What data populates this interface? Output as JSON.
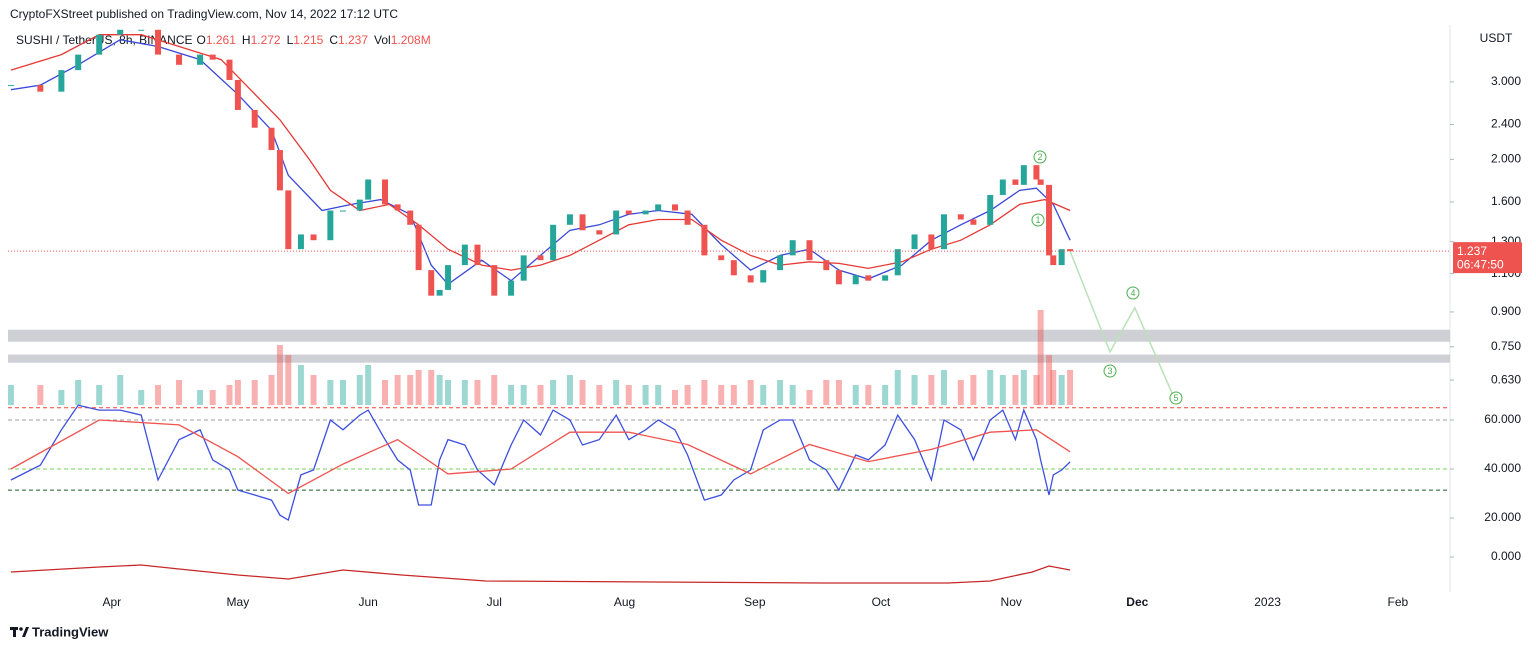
{
  "header": {
    "attribution": "CryptoFXStreet published on TradingView.com, Nov 14, 2022 17:12 UTC"
  },
  "footer": {
    "brand": "TradingView"
  },
  "chart_data": [
    {
      "type": "candlestick",
      "title": "SUSHI / TetherUS, 8h, BINANCE",
      "legend_values": [
        {
          "label": "O",
          "value": 1.261
        },
        {
          "label": "H",
          "value": 1.272
        },
        {
          "label": "L",
          "value": 1.215
        },
        {
          "label": "C",
          "value": 1.237
        },
        {
          "label": "Vol",
          "value": "1.208M"
        }
      ],
      "y_unit": "USDT",
      "countdown": "06:47:50",
      "log_scale": true,
      "up_color": "#26a69a",
      "down_color": "#ef5350",
      "xlim": [
        66.3,
        409.4
      ],
      "xticks": [
        {
          "value": 91,
          "label": "Apr"
        },
        {
          "value": 121,
          "label": "May"
        },
        {
          "value": 152,
          "label": "Jun"
        },
        {
          "value": 182,
          "label": "Jul"
        },
        {
          "value": 213,
          "label": "Aug"
        },
        {
          "value": 244,
          "label": "Sep"
        },
        {
          "value": 274,
          "label": "Oct"
        },
        {
          "value": 305,
          "label": "Nov"
        },
        {
          "value": 335,
          "label": "Dec"
        },
        {
          "value": 366,
          "label": "2023"
        },
        {
          "value": 397,
          "label": "Feb"
        }
      ],
      "ylim": [
        0.553,
        4.04
      ],
      "yticks": [
        {
          "value": 3,
          "label": "3.000"
        },
        {
          "value": 2.4,
          "label": "2.400"
        },
        {
          "value": 2,
          "label": "2.000"
        },
        {
          "value": 1.6,
          "label": "1.600"
        },
        {
          "value": 1.3,
          "label": "1.300"
        },
        {
          "value": 1.1,
          "label": "1.100"
        },
        {
          "value": 0.9,
          "label": "0.900"
        },
        {
          "value": 0.75,
          "label": "0.750"
        },
        {
          "value": 0.63,
          "label": "0.630"
        }
      ],
      "x": [
        67,
        74,
        79,
        83,
        88,
        93,
        98,
        102,
        107,
        112,
        115,
        119,
        121,
        125,
        129,
        131,
        133,
        136,
        139,
        143,
        146,
        150,
        152,
        156,
        159,
        162,
        164,
        167,
        169,
        171,
        175,
        178,
        182,
        186,
        189,
        193,
        196,
        200,
        203,
        207,
        211,
        214,
        218,
        221,
        225,
        228,
        232,
        236,
        239,
        243,
        246,
        250,
        253,
        257,
        261,
        264,
        268,
        271,
        275,
        278,
        282,
        286,
        289,
        293,
        296,
        300,
        303,
        306,
        308,
        311,
        312,
        314,
        315,
        317,
        319
      ],
      "close": [
        2.95,
        2.85,
        3.19,
        3.46,
        3.84,
        3.94,
        3.94,
        3.46,
        3.28,
        3.46,
        3.37,
        3.03,
        2.59,
        2.36,
        2.1,
        1.7,
        1.25,
        1.35,
        1.31,
        1.53,
        1.53,
        1.62,
        1.8,
        1.58,
        1.53,
        1.42,
        1.12,
        0.98,
        1.01,
        1.15,
        1.28,
        1.15,
        0.98,
        1.06,
        1.21,
        1.18,
        1.42,
        1.5,
        1.38,
        1.35,
        1.53,
        1.5,
        1.53,
        1.58,
        1.53,
        1.42,
        1.21,
        1.18,
        1.09,
        1.05,
        1.12,
        1.21,
        1.31,
        1.18,
        1.12,
        1.04,
        1.09,
        1.06,
        1.09,
        1.25,
        1.35,
        1.25,
        1.5,
        1.46,
        1.42,
        1.66,
        1.8,
        1.75,
        1.94,
        1.8,
        1.75,
        1.21,
        1.15,
        1.25,
        1.237
      ],
      "volume": [
        2,
        2,
        1.5,
        2.5,
        2,
        3,
        1.5,
        2,
        2.5,
        1.5,
        1.5,
        2,
        2.5,
        2.5,
        3,
        6,
        5,
        4,
        3,
        2.5,
        2.5,
        3,
        4,
        2.5,
        3,
        3,
        3.5,
        3.5,
        3,
        2.5,
        2.5,
        2.5,
        3,
        2,
        2,
        2,
        2.5,
        3,
        2.5,
        2,
        2.5,
        2,
        2,
        2,
        1.5,
        2,
        2.5,
        2,
        2,
        2.5,
        2,
        2.5,
        2,
        1.5,
        2.5,
        2.5,
        2,
        2,
        2,
        3.5,
        3,
        3,
        3.5,
        2.5,
        3,
        3.5,
        3,
        3,
        3.5,
        3,
        9.5,
        5,
        3.5,
        3,
        3.5
      ],
      "series": [
        {
          "color": "#3949d8",
          "x": [
            67,
            74,
            83,
            93,
            102,
            112,
            121,
            129,
            133,
            141,
            148,
            155,
            162,
            167,
            171,
            179,
            186,
            193,
            200,
            207,
            214,
            221,
            229,
            236,
            243,
            250,
            257,
            264,
            271,
            279,
            286,
            293,
            300,
            307,
            311,
            315,
            319
          ],
          "values": [
            2.88,
            2.95,
            3.28,
            3.74,
            3.61,
            3.37,
            2.81,
            2.33,
            1.84,
            1.53,
            1.58,
            1.62,
            1.5,
            1.15,
            1.04,
            1.18,
            1.06,
            1.21,
            1.38,
            1.42,
            1.5,
            1.53,
            1.5,
            1.28,
            1.12,
            1.21,
            1.25,
            1.12,
            1.07,
            1.15,
            1.31,
            1.42,
            1.53,
            1.7,
            1.72,
            1.58,
            1.31
          ]
        },
        {
          "color": "#e53935",
          "x": [
            67,
            79,
            88,
            98,
            107,
            117,
            124,
            131,
            138,
            143,
            150,
            157,
            164,
            171,
            179,
            186,
            193,
            200,
            207,
            214,
            221,
            229,
            236,
            243,
            250,
            257,
            264,
            271,
            279,
            286,
            293,
            300,
            307,
            313,
            319
          ],
          "values": [
            3.19,
            3.46,
            3.84,
            3.84,
            3.61,
            3.37,
            2.88,
            2.46,
            2.0,
            1.7,
            1.53,
            1.58,
            1.42,
            1.25,
            1.15,
            1.12,
            1.15,
            1.21,
            1.31,
            1.42,
            1.46,
            1.46,
            1.31,
            1.21,
            1.15,
            1.17,
            1.16,
            1.13,
            1.17,
            1.25,
            1.31,
            1.42,
            1.58,
            1.62,
            1.53
          ]
        }
      ],
      "projection": {
        "color": "#b9e2b9",
        "x": [
          319,
          328.5,
          334.4,
          343.9
        ],
        "values": [
          1.237,
          0.73,
          0.92,
          0.57
        ]
      },
      "waves": [
        "1",
        "2",
        "3",
        "4",
        "5"
      ],
      "zones": [
        [
          0.77,
          0.82
        ],
        [
          0.69,
          0.72
        ]
      ]
    },
    {
      "type": "line",
      "ylim": [
        9,
        66.1
      ],
      "yticks": [
        {
          "value": 60,
          "label": "60.000"
        },
        {
          "value": 40,
          "label": "40.000"
        },
        {
          "value": 20,
          "label": "20.000"
        }
      ],
      "levels": [
        {
          "value": 65,
          "color": "#f44336"
        },
        {
          "value": 60,
          "color": "#9e9e9e"
        },
        {
          "value": 40,
          "color": "#76d35a"
        },
        {
          "value": 31.4,
          "color": "#1b5e20"
        }
      ],
      "series": [
        {
          "color": "#3d4fe0",
          "x": [
            67,
            74,
            79,
            83,
            88,
            93,
            98,
            102,
            107,
            112,
            115,
            119,
            121,
            125,
            129,
            131,
            133,
            136,
            139,
            143,
            146,
            150,
            152,
            156,
            159,
            162,
            164,
            167,
            169,
            171,
            175,
            178,
            182,
            186,
            189,
            193,
            196,
            200,
            203,
            207,
            211,
            214,
            218,
            221,
            225,
            228,
            232,
            236,
            239,
            243,
            246,
            250,
            253,
            257,
            261,
            264,
            268,
            271,
            275,
            278,
            282,
            286,
            289,
            293,
            296,
            300,
            303,
            306,
            308,
            311,
            312,
            314,
            315,
            317,
            319
          ],
          "values": [
            35.5,
            41.6,
            56,
            66,
            64,
            64,
            62,
            35.5,
            52,
            56,
            43.7,
            39.6,
            31.4,
            29.4,
            27.3,
            21.2,
            19.2,
            37.6,
            39.6,
            60,
            56,
            62,
            64,
            52,
            43.7,
            39.6,
            25.3,
            25.3,
            43.7,
            52,
            49.8,
            39.6,
            33.5,
            49.8,
            60,
            53.9,
            64,
            60,
            49.8,
            52,
            62,
            52,
            56,
            60,
            56,
            45.7,
            27.3,
            29.4,
            35.5,
            39.6,
            56,
            60,
            60,
            43.7,
            39.6,
            31.4,
            45.7,
            43.7,
            49.8,
            62,
            52,
            35.5,
            60,
            56,
            43.7,
            60,
            64,
            52,
            64,
            52,
            43.7,
            29.4,
            37.6,
            39.6,
            42.9
          ]
        },
        {
          "color": "#ef5350",
          "x": [
            67,
            88,
            107,
            121,
            133,
            146,
            159,
            171,
            186,
            200,
            214,
            228,
            243,
            257,
            271,
            286,
            300,
            311,
            319
          ],
          "values": [
            40,
            60,
            58,
            45,
            30,
            42,
            52,
            38,
            40,
            55,
            55,
            50,
            38,
            50,
            43,
            48,
            55,
            56,
            47
          ]
        }
      ]
    },
    {
      "type": "line",
      "ylim": [
        -17,
        4.5
      ],
      "yticks": [
        {
          "value": 0,
          "label": "0.000"
        }
      ],
      "series": [
        {
          "color": "#c62828",
          "x": [
            67,
            88,
            98,
            107,
            121,
            133,
            146,
            160,
            180,
            220,
            260,
            290,
            300,
            310,
            314,
            319
          ],
          "values": [
            -7.5,
            -5,
            -4,
            -6,
            -9,
            -11,
            -6.5,
            -9,
            -12,
            -12.5,
            -13,
            -13,
            -12,
            -7.5,
            -4.5,
            -6.5
          ]
        }
      ]
    }
  ]
}
